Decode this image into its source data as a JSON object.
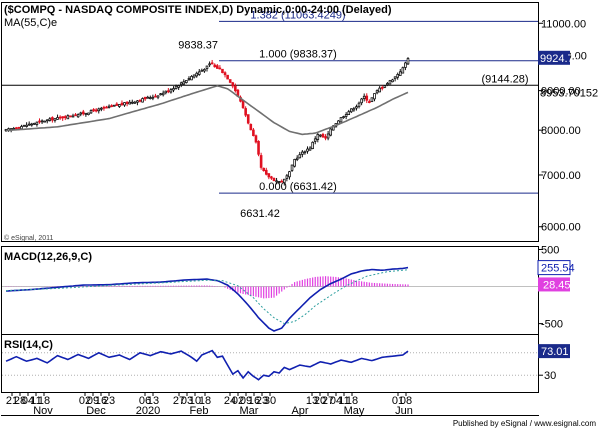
{
  "header": {
    "title": "($COMPQ - NASDAQ COMPOSITE INDEX,D) Dynamic,0:00-24:00 (Delayed)",
    "ma_label": "MA(55,C)e"
  },
  "footer": {
    "text": "Published by eSignal / www.esignal.com"
  },
  "watermark": "© eSignal, 2011",
  "colors": {
    "up": "#101010",
    "down": "#e01020",
    "ma": "#707070",
    "macd": "#1020b0",
    "macd_signal": "#30a0a0",
    "hist": "#e040e0",
    "rsi": "#1020b0",
    "price_badge": "#1a2a8a",
    "fib": "#1a2a8a",
    "bg": "#ffffff"
  },
  "chart_data": [
    {
      "type": "candlestick",
      "title": "($COMPQ - NASDAQ COMPOSITE INDEX,D) Dynamic,0:00-24:00 (Delayed)",
      "ylim": [
        5750,
        11650
      ],
      "yscale": "log",
      "y_ticks": [
        6000,
        7000,
        8000,
        9000,
        10000,
        11000
      ],
      "y_tick_labels": [
        "6000.00",
        "7000.00",
        "8000.00",
        "9000.00",
        "10000.00",
        "11000.00"
      ],
      "x_tick_labels": [
        "21",
        "28",
        "04",
        "11",
        "18",
        "02",
        "09",
        "16",
        "23",
        "06",
        "13",
        "27",
        "03",
        "10",
        "18",
        "24",
        "02",
        "09",
        "16",
        "23",
        "30",
        "13",
        "20",
        "27",
        "04",
        "11",
        "18",
        "01",
        "08"
      ],
      "month_labels": [
        "Nov",
        "Dec",
        "2020",
        "Feb",
        "Mar",
        "Apr",
        "May",
        "Jun"
      ],
      "series": [
        {
          "name": "$COMPQ",
          "anchors": [
            [
              0,
              8000
            ],
            [
              15,
              8230
            ],
            [
              30,
              8410
            ],
            [
              40,
              8570
            ],
            [
              50,
              8720
            ],
            [
              58,
              8860
            ],
            [
              63,
              9000
            ],
            [
              68,
              9200
            ],
            [
              72,
              9390
            ],
            [
              75,
              9520
            ],
            [
              78,
              9660
            ],
            [
              79,
              9730
            ],
            [
              80,
              9750
            ],
            [
              81,
              9660
            ],
            [
              83,
              9600
            ],
            [
              85,
              9440
            ],
            [
              88,
              9150
            ],
            [
              92,
              8560
            ],
            [
              95,
              8000
            ],
            [
              97,
              7700
            ],
            [
              99,
              7150
            ],
            [
              101,
              7000
            ],
            [
              104,
              6900
            ],
            [
              106,
              6860
            ],
            [
              108,
              6900
            ],
            [
              110,
              7050
            ],
            [
              112,
              7330
            ],
            [
              115,
              7480
            ],
            [
              118,
              7600
            ],
            [
              121,
              7910
            ],
            [
              124,
              7800
            ],
            [
              127,
              8110
            ],
            [
              130,
              8300
            ],
            [
              133,
              8460
            ],
            [
              136,
              8600
            ],
            [
              139,
              8840
            ],
            [
              141,
              8700
            ],
            [
              143,
              8910
            ],
            [
              145,
              9060
            ],
            [
              148,
              9200
            ],
            [
              151,
              9375
            ],
            [
              154,
              9620
            ],
            [
              156,
              9925
            ]
          ]
        },
        {
          "name": "MA(55,C)e",
          "anchors": [
            [
              0,
              7990
            ],
            [
              20,
              8080
            ],
            [
              40,
              8280
            ],
            [
              60,
              8650
            ],
            [
              75,
              8980
            ],
            [
              82,
              9130
            ],
            [
              86,
              9050
            ],
            [
              94,
              8650
            ],
            [
              104,
              8180
            ],
            [
              110,
              7970
            ],
            [
              115,
              7900
            ],
            [
              120,
              7930
            ],
            [
              128,
              8110
            ],
            [
              136,
              8330
            ],
            [
              144,
              8560
            ],
            [
              150,
              8770
            ],
            [
              156,
              8953.70152
            ]
          ]
        }
      ],
      "fib_levels": [
        {
          "label": "1.382 (11063.4249)",
          "value": 11063.4249
        },
        {
          "label": "1.000 (9838.37)",
          "value": 9838.37
        },
        {
          "label": "0.000 (6631.42)",
          "value": 6631.42
        }
      ],
      "horizontal_line": {
        "label": "(9144.28)",
        "value": 9144.28
      },
      "annotations": [
        {
          "text": "9838.37",
          "value": 9838.37,
          "date_index": 80
        },
        {
          "text": "6631.42",
          "value": 6631.42,
          "date_index": 104
        }
      ],
      "last_price": {
        "label": "9924.74",
        "value": 9924.74
      },
      "ma_value": {
        "label": "8953.70152",
        "value": 8953.70152
      }
    },
    {
      "type": "line",
      "title": "MACD(12,26,9,C)",
      "ylim": [
        -640,
        520
      ],
      "y_ticks": [
        500,
        0,
        -500
      ],
      "y_tick_labels": [
        "500",
        "0",
        "-500"
      ],
      "series": [
        {
          "name": "MACD",
          "anchors": [
            [
              0,
              -60
            ],
            [
              10,
              -40
            ],
            [
              20,
              -10
            ],
            [
              30,
              20
            ],
            [
              40,
              25
            ],
            [
              50,
              50
            ],
            [
              60,
              60
            ],
            [
              70,
              90
            ],
            [
              78,
              100
            ],
            [
              82,
              80
            ],
            [
              86,
              20
            ],
            [
              90,
              -100
            ],
            [
              94,
              -250
            ],
            [
              98,
              -420
            ],
            [
              102,
              -560
            ],
            [
              104,
              -600
            ],
            [
              107,
              -560
            ],
            [
              110,
              -430
            ],
            [
              114,
              -290
            ],
            [
              118,
              -150
            ],
            [
              122,
              -40
            ],
            [
              126,
              40
            ],
            [
              130,
              100
            ],
            [
              134,
              170
            ],
            [
              138,
              210
            ],
            [
              142,
              230
            ],
            [
              146,
              220
            ],
            [
              150,
              235
            ],
            [
              154,
              245
            ],
            [
              156,
              255.54
            ]
          ]
        },
        {
          "name": "Signal",
          "anchors": [
            [
              0,
              -55
            ],
            [
              20,
              -25
            ],
            [
              40,
              15
            ],
            [
              60,
              50
            ],
            [
              78,
              85
            ],
            [
              84,
              80
            ],
            [
              90,
              10
            ],
            [
              96,
              -150
            ],
            [
              100,
              -300
            ],
            [
              104,
              -420
            ],
            [
              108,
              -500
            ],
            [
              112,
              -470
            ],
            [
              116,
              -380
            ],
            [
              120,
              -260
            ],
            [
              126,
              -120
            ],
            [
              132,
              10
            ],
            [
              140,
              140
            ],
            [
              148,
              200
            ],
            [
              156,
              227.09
            ]
          ]
        },
        {
          "name": "Histogram",
          "anchors": [
            [
              0,
              -5
            ],
            [
              30,
              8
            ],
            [
              60,
              10
            ],
            [
              78,
              15
            ],
            [
              84,
              0
            ],
            [
              88,
              -60
            ],
            [
              92,
              -100
            ],
            [
              96,
              -130
            ],
            [
              100,
              -160
            ],
            [
              104,
              -150
            ],
            [
              108,
              -40
            ],
            [
              112,
              60
            ],
            [
              116,
              100
            ],
            [
              120,
              130
            ],
            [
              124,
              140
            ],
            [
              128,
              130
            ],
            [
              132,
              110
            ],
            [
              136,
              80
            ],
            [
              142,
              50
            ],
            [
              150,
              35
            ],
            [
              156,
              28.45
            ]
          ]
        }
      ],
      "last_values": [
        {
          "label": "255.54",
          "series": "MACD"
        },
        {
          "label": "28.45",
          "series": "Histogram"
        }
      ]
    },
    {
      "type": "line",
      "title": "RSI(14,C)",
      "ylim": [
        0,
        100
      ],
      "y_ticks": [
        70,
        30
      ],
      "y_tick_labels": [
        "70",
        "30"
      ],
      "series": [
        {
          "name": "RSI",
          "anchors": [
            [
              0,
              55
            ],
            [
              4,
              63
            ],
            [
              8,
              55
            ],
            [
              12,
              60
            ],
            [
              16,
              52
            ],
            [
              20,
              65
            ],
            [
              24,
              58
            ],
            [
              28,
              67
            ],
            [
              32,
              60
            ],
            [
              36,
              70
            ],
            [
              40,
              62
            ],
            [
              44,
              66
            ],
            [
              48,
              58
            ],
            [
              52,
              70
            ],
            [
              56,
              65
            ],
            [
              60,
              72
            ],
            [
              64,
              68
            ],
            [
              68,
              73
            ],
            [
              72,
              62
            ],
            [
              74,
              55
            ],
            [
              76,
              66
            ],
            [
              78,
              70
            ],
            [
              80,
              74
            ],
            [
              82,
              62
            ],
            [
              84,
              64
            ],
            [
              86,
              48
            ],
            [
              88,
              32
            ],
            [
              90,
              38
            ],
            [
              92,
              25
            ],
            [
              94,
              36
            ],
            [
              96,
              28
            ],
            [
              98,
              22
            ],
            [
              100,
              30
            ],
            [
              102,
              28
            ],
            [
              104,
              36
            ],
            [
              106,
              34
            ],
            [
              108,
              44
            ],
            [
              110,
              40
            ],
            [
              114,
              48
            ],
            [
              118,
              45
            ],
            [
              122,
              54
            ],
            [
              126,
              50
            ],
            [
              130,
              57
            ],
            [
              134,
              53
            ],
            [
              138,
              60
            ],
            [
              142,
              56
            ],
            [
              146,
              62
            ],
            [
              150,
              64
            ],
            [
              154,
              66
            ],
            [
              156,
              73.01
            ]
          ]
        }
      ],
      "last_value": {
        "label": "73.01"
      }
    }
  ]
}
